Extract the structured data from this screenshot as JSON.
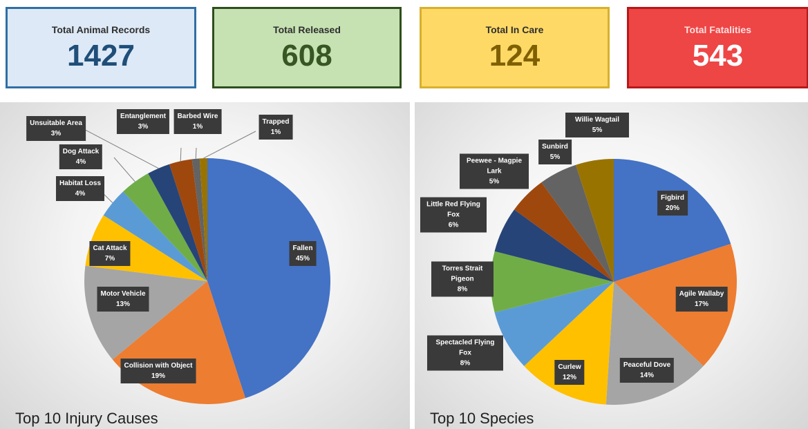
{
  "kpis": {
    "records": {
      "label": "Total Animal Records",
      "value": "1427"
    },
    "released": {
      "label": "Total Released",
      "value": "608"
    },
    "care": {
      "label": "Total In Care",
      "value": "124"
    },
    "fatal": {
      "label": "Total Fatalities",
      "value": "543"
    }
  },
  "chart_data": [
    {
      "type": "pie",
      "title": "Top 10 Injury Causes",
      "start_angle_deg": 0,
      "slices": [
        {
          "name": "Fallen",
          "value": 45,
          "label": "45%",
          "color": "#4472c4"
        },
        {
          "name": "Collision with Object",
          "value": 19,
          "label": "19%",
          "color": "#ed7d31"
        },
        {
          "name": "Motor Vehicle",
          "value": 13,
          "label": "13%",
          "color": "#a5a5a5"
        },
        {
          "name": "Cat Attack",
          "value": 7,
          "label": "7%",
          "color": "#ffc000"
        },
        {
          "name": "Habitat Loss",
          "value": 4,
          "label": "4%",
          "color": "#5b9bd5"
        },
        {
          "name": "Dog Attack",
          "value": 4,
          "label": "4%",
          "color": "#70ad47"
        },
        {
          "name": "Unsuitable Area",
          "value": 3,
          "label": "3%",
          "color": "#264478"
        },
        {
          "name": "Entanglement",
          "value": 3,
          "label": "3%",
          "color": "#9e480e"
        },
        {
          "name": "Barbed Wire",
          "value": 1,
          "label": "1%",
          "color": "#636363"
        },
        {
          "name": "Trapped",
          "value": 1,
          "label": "1%",
          "color": "#997300"
        }
      ]
    },
    {
      "type": "pie",
      "title": "Top 10 Species",
      "start_angle_deg": 0,
      "slices": [
        {
          "name": "Figbird",
          "value": 20,
          "label": "20%",
          "color": "#4472c4"
        },
        {
          "name": "Agile Wallaby",
          "value": 17,
          "label": "17%",
          "color": "#ed7d31"
        },
        {
          "name": "Peaceful Dove",
          "value": 14,
          "label": "14%",
          "color": "#a5a5a5"
        },
        {
          "name": "Curlew",
          "value": 12,
          "label": "12%",
          "color": "#ffc000"
        },
        {
          "name": "Spectacled Flying Fox",
          "value": 8,
          "label": "8%",
          "color": "#5b9bd5"
        },
        {
          "name": "Torres Strait Pigeon",
          "value": 8,
          "label": "8%",
          "color": "#70ad47"
        },
        {
          "name": "Little Red Flying Fox",
          "value": 6,
          "label": "6%",
          "color": "#264478"
        },
        {
          "name": "Peewee - Magpie Lark",
          "value": 5,
          "label": "5%",
          "color": "#9e480e"
        },
        {
          "name": "Sunbird",
          "value": 5,
          "label": "5%",
          "color": "#636363"
        },
        {
          "name": "Willie Wagtail",
          "value": 5,
          "label": "5%",
          "color": "#997300"
        }
      ]
    }
  ]
}
